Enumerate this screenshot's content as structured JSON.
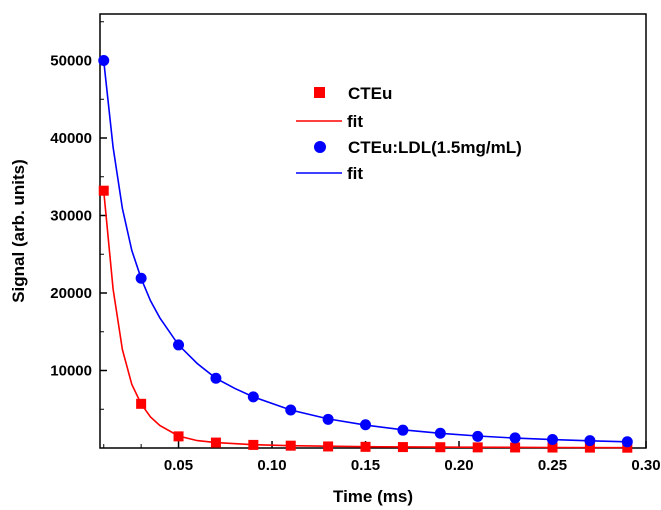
{
  "chart_data": {
    "type": "scatter",
    "xlabel": "Time (ms)",
    "ylabel": "Signal (arb. units)",
    "xlim": [
      0.008,
      0.3
    ],
    "ylim": [
      0,
      56000
    ],
    "x_ticks": [
      0.05,
      0.1,
      0.15,
      0.2,
      0.25,
      0.3
    ],
    "x_tick_labels": [
      "0.05",
      "0.10",
      "0.15",
      "0.20",
      "0.25",
      "0.30"
    ],
    "y_ticks": [
      10000,
      20000,
      30000,
      40000,
      50000
    ],
    "y_tick_labels": [
      "10000",
      "20000",
      "30000",
      "40000",
      "50000"
    ],
    "grid": false,
    "legend_position": "top-center",
    "series": [
      {
        "name": "CTEu",
        "marker": "square",
        "color": "#ff0000",
        "x": [
          0.01,
          0.03,
          0.05,
          0.07,
          0.09,
          0.11,
          0.13,
          0.15,
          0.17,
          0.19,
          0.21,
          0.23,
          0.25,
          0.27,
          0.29
        ],
        "y": [
          33200,
          5700,
          1500,
          700,
          400,
          300,
          200,
          150,
          120,
          100,
          80,
          70,
          60,
          50,
          40
        ]
      },
      {
        "name": "fit",
        "line": true,
        "color": "#ff0000",
        "x": [
          0.01,
          0.015,
          0.02,
          0.025,
          0.03,
          0.035,
          0.04,
          0.05,
          0.06,
          0.07,
          0.09,
          0.11,
          0.15,
          0.2,
          0.25,
          0.29
        ],
        "y": [
          33200,
          20500,
          12700,
          8200,
          5700,
          4000,
          2900,
          1550,
          950,
          700,
          420,
          300,
          170,
          100,
          60,
          40
        ]
      },
      {
        "name": "CTEu:LDL(1.5mg/mL)",
        "marker": "circle",
        "color": "#0000ff",
        "x": [
          0.01,
          0.03,
          0.05,
          0.07,
          0.09,
          0.11,
          0.13,
          0.15,
          0.17,
          0.19,
          0.21,
          0.23,
          0.25,
          0.27,
          0.29
        ],
        "y": [
          50000,
          21900,
          13300,
          9000,
          6600,
          4900,
          3700,
          3000,
          2300,
          1900,
          1500,
          1300,
          1100,
          950,
          800
        ]
      },
      {
        "name": "fit",
        "line": true,
        "color": "#0000ff",
        "x": [
          0.01,
          0.015,
          0.02,
          0.025,
          0.03,
          0.035,
          0.04,
          0.05,
          0.06,
          0.07,
          0.08,
          0.09,
          0.11,
          0.13,
          0.15,
          0.17,
          0.19,
          0.21,
          0.23,
          0.25,
          0.27,
          0.29
        ],
        "y": [
          50000,
          38800,
          30900,
          25500,
          21900,
          19000,
          16800,
          13300,
          10900,
          9000,
          7700,
          6600,
          4900,
          3750,
          2950,
          2350,
          1900,
          1550,
          1280,
          1080,
          930,
          800
        ]
      }
    ]
  }
}
